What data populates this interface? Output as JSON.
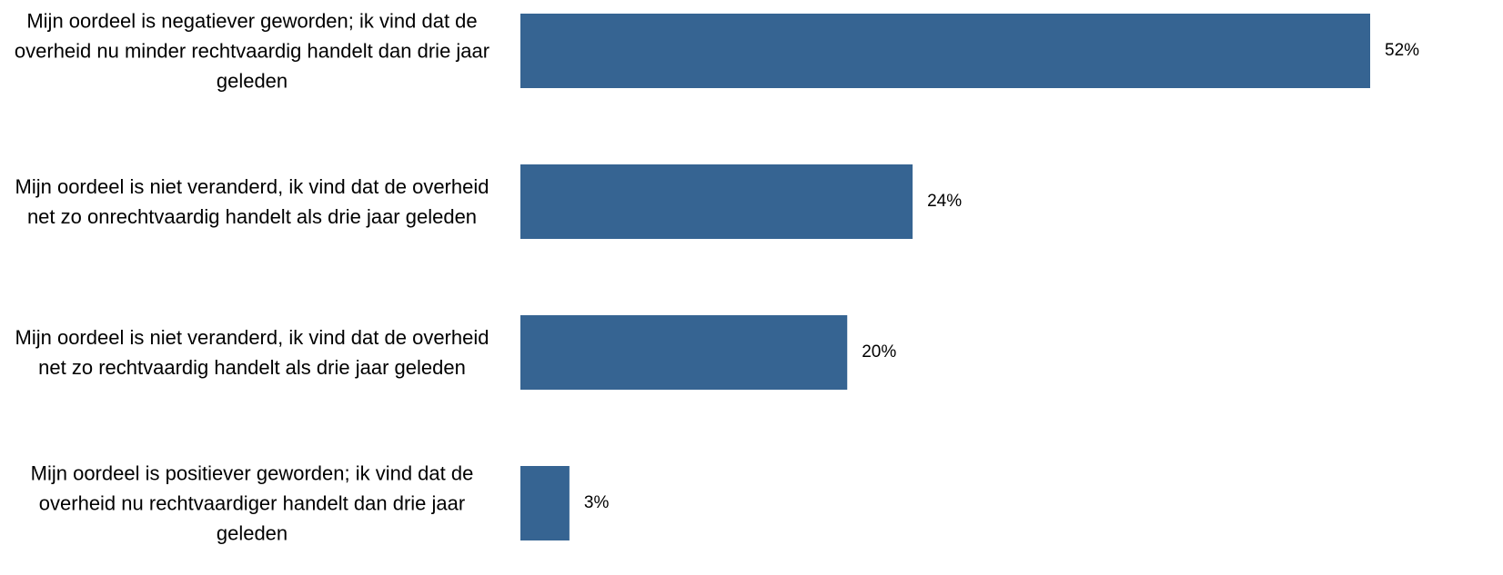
{
  "chart_data": {
    "type": "bar",
    "orientation": "horizontal",
    "categories": [
      "Mijn oordeel is negatiever geworden; ik vind dat de overheid nu minder rechtvaardig handelt dan drie jaar geleden",
      "Mijn oordeel is niet veranderd, ik vind dat de overheid net zo onrechtvaardig handelt als drie jaar geleden",
      "Mijn oordeel is niet veranderd, ik vind dat de overheid net zo rechtvaardig handelt als drie jaar geleden",
      "Mijn oordeel is positiever geworden; ik vind dat de overheid nu rechtvaardiger handelt dan drie jaar geleden"
    ],
    "values": [
      52,
      24,
      20,
      3
    ],
    "value_labels": [
      "52%",
      "24%",
      "20%",
      "3%"
    ],
    "color": "#366492"
  }
}
